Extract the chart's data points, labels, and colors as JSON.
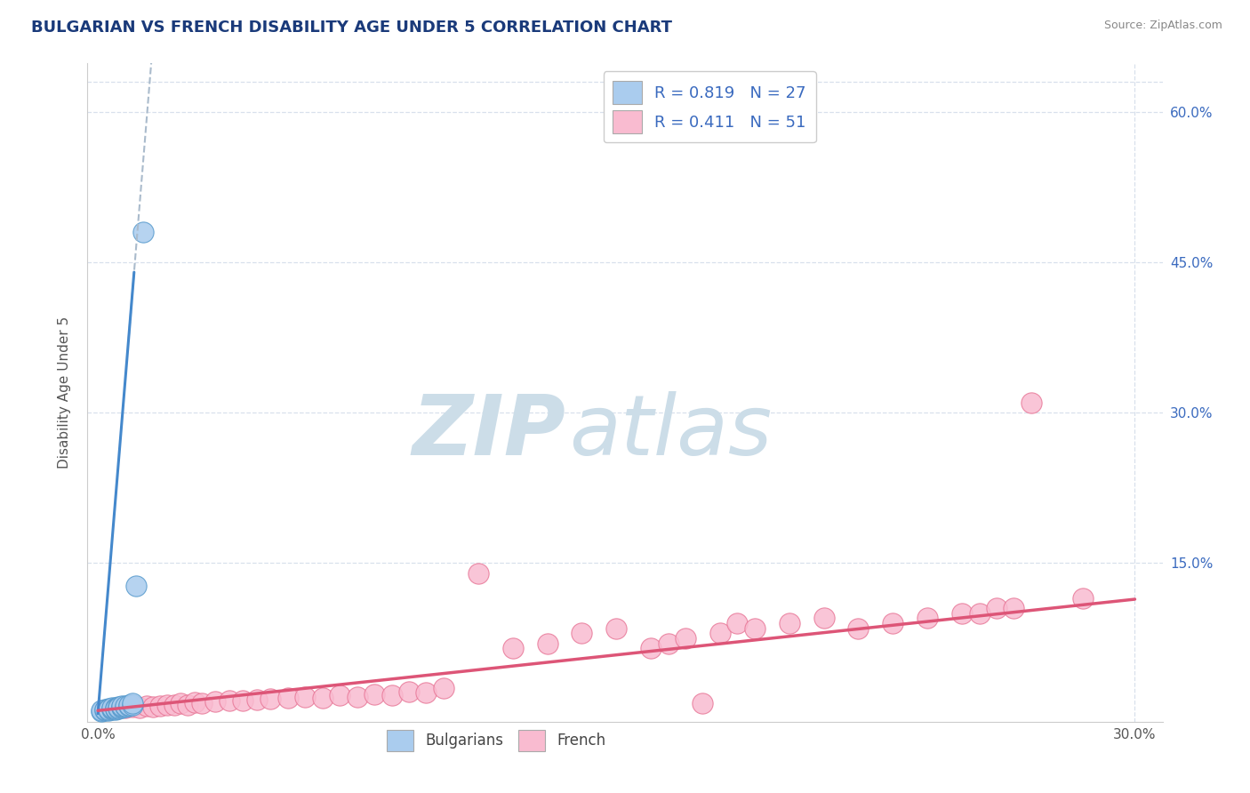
{
  "title": "BULGARIAN VS FRENCH DISABILITY AGE UNDER 5 CORRELATION CHART",
  "source": "Source: ZipAtlas.com",
  "ylabel": "Disability Age Under 5",
  "xlim": [
    -0.003,
    0.308
  ],
  "ylim": [
    -0.008,
    0.648
  ],
  "xtick_vals": [
    0.0,
    0.1,
    0.2,
    0.3
  ],
  "xtick_labels_show": [
    "0.0%",
    "",
    "",
    "30.0%"
  ],
  "ytick_vals": [
    0.15,
    0.3,
    0.45,
    0.6
  ],
  "ytick_labels": [
    "15.0%",
    "30.0%",
    "45.0%",
    "60.0%"
  ],
  "bulgarian_R": 0.819,
  "bulgarian_N": 27,
  "french_R": 0.411,
  "french_N": 51,
  "bulgarian_scatter_color": "#aaccee",
  "bulgarian_edge_color": "#5599cc",
  "french_scatter_color": "#f9bbd0",
  "french_edge_color": "#e87898",
  "bulgarian_line_color": "#4488cc",
  "french_line_color": "#dd5577",
  "dashed_line_color": "#aabbcc",
  "grid_color": "#d8e0ec",
  "bg_color": "#ffffff",
  "title_color": "#1a3a7a",
  "source_color": "#888888",
  "watermark_color": "#ccdde8",
  "bulgarian_x": [
    0.001,
    0.001,
    0.002,
    0.002,
    0.003,
    0.003,
    0.003,
    0.004,
    0.004,
    0.004,
    0.005,
    0.005,
    0.005,
    0.006,
    0.006,
    0.006,
    0.007,
    0.007,
    0.007,
    0.008,
    0.008,
    0.009,
    0.009,
    0.01,
    0.01,
    0.011,
    0.013
  ],
  "bulgarian_y": [
    0.002,
    0.003,
    0.003,
    0.004,
    0.003,
    0.005,
    0.004,
    0.004,
    0.005,
    0.006,
    0.004,
    0.006,
    0.005,
    0.005,
    0.007,
    0.006,
    0.006,
    0.007,
    0.008,
    0.007,
    0.008,
    0.008,
    0.009,
    0.009,
    0.01,
    0.127,
    0.48
  ],
  "french_x": [
    0.005,
    0.008,
    0.01,
    0.012,
    0.014,
    0.016,
    0.018,
    0.02,
    0.022,
    0.024,
    0.026,
    0.028,
    0.03,
    0.034,
    0.038,
    0.042,
    0.046,
    0.05,
    0.055,
    0.06,
    0.065,
    0.07,
    0.075,
    0.08,
    0.085,
    0.09,
    0.095,
    0.1,
    0.11,
    0.12,
    0.13,
    0.14,
    0.15,
    0.16,
    0.165,
    0.17,
    0.175,
    0.18,
    0.185,
    0.19,
    0.2,
    0.21,
    0.22,
    0.23,
    0.24,
    0.25,
    0.255,
    0.26,
    0.265,
    0.27,
    0.285
  ],
  "french_y": [
    0.005,
    0.006,
    0.007,
    0.006,
    0.008,
    0.007,
    0.008,
    0.009,
    0.009,
    0.01,
    0.009,
    0.011,
    0.01,
    0.012,
    0.013,
    0.013,
    0.014,
    0.015,
    0.016,
    0.017,
    0.016,
    0.018,
    0.017,
    0.019,
    0.018,
    0.022,
    0.021,
    0.025,
    0.14,
    0.065,
    0.07,
    0.08,
    0.085,
    0.065,
    0.07,
    0.075,
    0.01,
    0.08,
    0.09,
    0.085,
    0.09,
    0.095,
    0.085,
    0.09,
    0.095,
    0.1,
    0.1,
    0.105,
    0.105,
    0.31,
    0.115
  ],
  "b_slope": 42.0,
  "b_intercept": 0.0,
  "f_slope": 0.37,
  "f_intercept": 0.003
}
